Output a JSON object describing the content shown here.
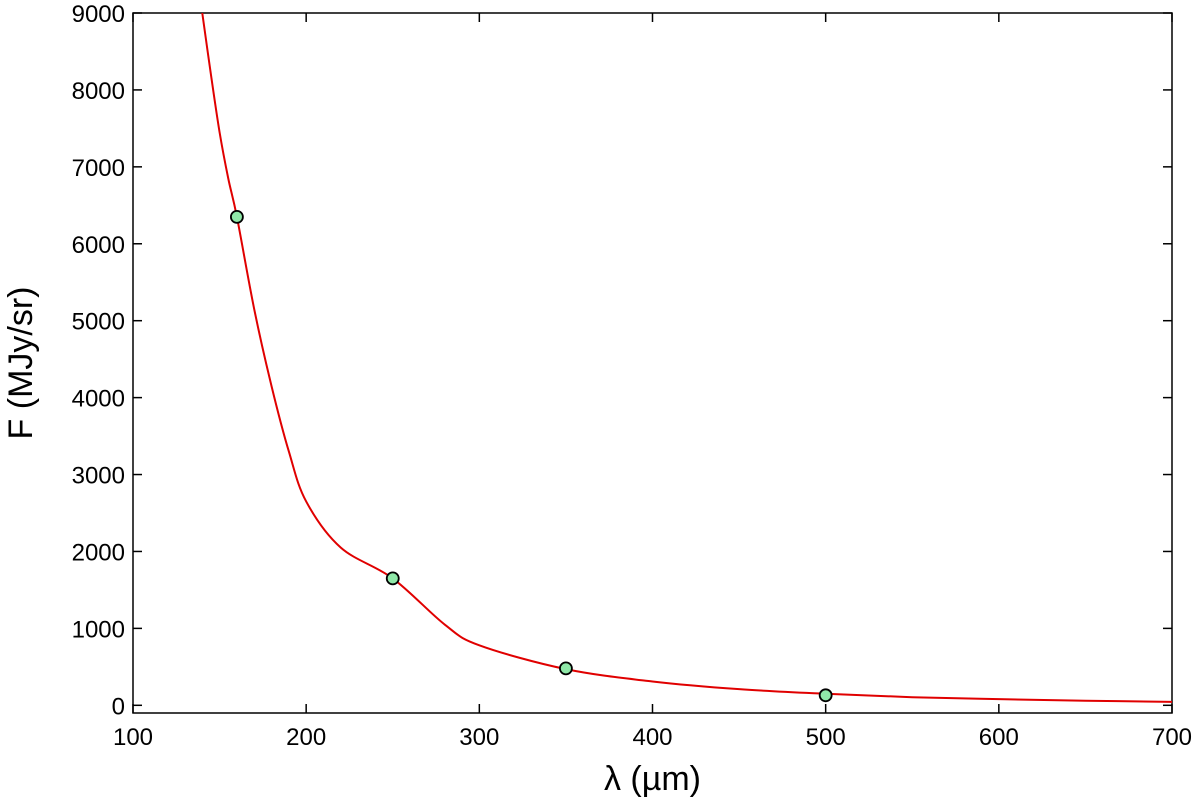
{
  "chart_data": {
    "type": "line",
    "title": "",
    "xlabel": "λ (µm)",
    "ylabel": "F (MJy/sr)",
    "xlim": [
      100,
      700
    ],
    "ylim": [
      -100,
      9000
    ],
    "xticks": [
      100,
      200,
      300,
      400,
      500,
      600,
      700
    ],
    "yticks": [
      0,
      1000,
      2000,
      3000,
      4000,
      5000,
      6000,
      7000,
      8000,
      9000
    ],
    "grid": false,
    "series": [
      {
        "kind": "line",
        "color": "#e00000",
        "x": [
          140,
          145,
          150,
          155,
          160,
          170,
          180,
          190,
          200,
          220,
          250,
          280,
          300,
          350,
          400,
          450,
          500,
          550,
          600,
          650,
          700
        ],
        "y": [
          9000,
          8200,
          7450,
          6850,
          6350,
          5150,
          4150,
          3300,
          2650,
          2050,
          1650,
          1050,
          780,
          470,
          310,
          210,
          150,
          105,
          80,
          60,
          45
        ]
      },
      {
        "kind": "scatter",
        "color": "#8fe8a8",
        "edgecolor": "#000000",
        "x": [
          160,
          250,
          350,
          500
        ],
        "y": [
          6350,
          1650,
          480,
          130
        ]
      }
    ]
  }
}
